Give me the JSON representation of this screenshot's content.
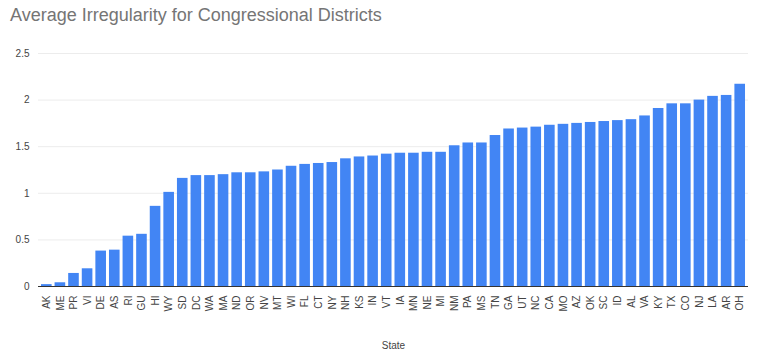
{
  "chart_data": {
    "type": "bar",
    "title": "Average Irregularity for Congressional Districts",
    "x_label": "State",
    "categories": [
      "AK",
      "ME",
      "PR",
      "VI",
      "DE",
      "AS",
      "RI",
      "GU",
      "HI",
      "WY",
      "SD",
      "DC",
      "WA",
      "MA",
      "ND",
      "OR",
      "NV",
      "MT",
      "WI",
      "FL",
      "CT",
      "NY",
      "NH",
      "KS",
      "IN",
      "VT",
      "IA",
      "MN",
      "NE",
      "MI",
      "NM",
      "PA",
      "MS",
      "TN",
      "GA",
      "UT",
      "NC",
      "CA",
      "MO",
      "AZ",
      "OK",
      "SC",
      "ID",
      "AL",
      "VA",
      "KY",
      "TX",
      "CO",
      "NJ",
      "LA",
      "AR",
      "OH"
    ],
    "values": [
      0.02,
      0.04,
      0.14,
      0.19,
      0.38,
      0.39,
      0.54,
      0.56,
      0.86,
      1.01,
      1.16,
      1.19,
      1.19,
      1.2,
      1.22,
      1.22,
      1.23,
      1.25,
      1.29,
      1.31,
      1.32,
      1.33,
      1.37,
      1.39,
      1.4,
      1.42,
      1.43,
      1.43,
      1.44,
      1.44,
      1.51,
      1.54,
      1.54,
      1.62,
      1.69,
      1.7,
      1.71,
      1.73,
      1.74,
      1.75,
      1.76,
      1.77,
      1.78,
      1.79,
      1.83,
      1.91,
      1.96,
      1.96,
      2.0,
      2.04,
      2.05,
      2.17
    ],
    "color": "#4285f4",
    "ylim": [
      0,
      2.5
    ],
    "yticks": [
      0,
      0.5,
      1,
      1.5,
      2,
      2.5
    ],
    "grid": true
  }
}
